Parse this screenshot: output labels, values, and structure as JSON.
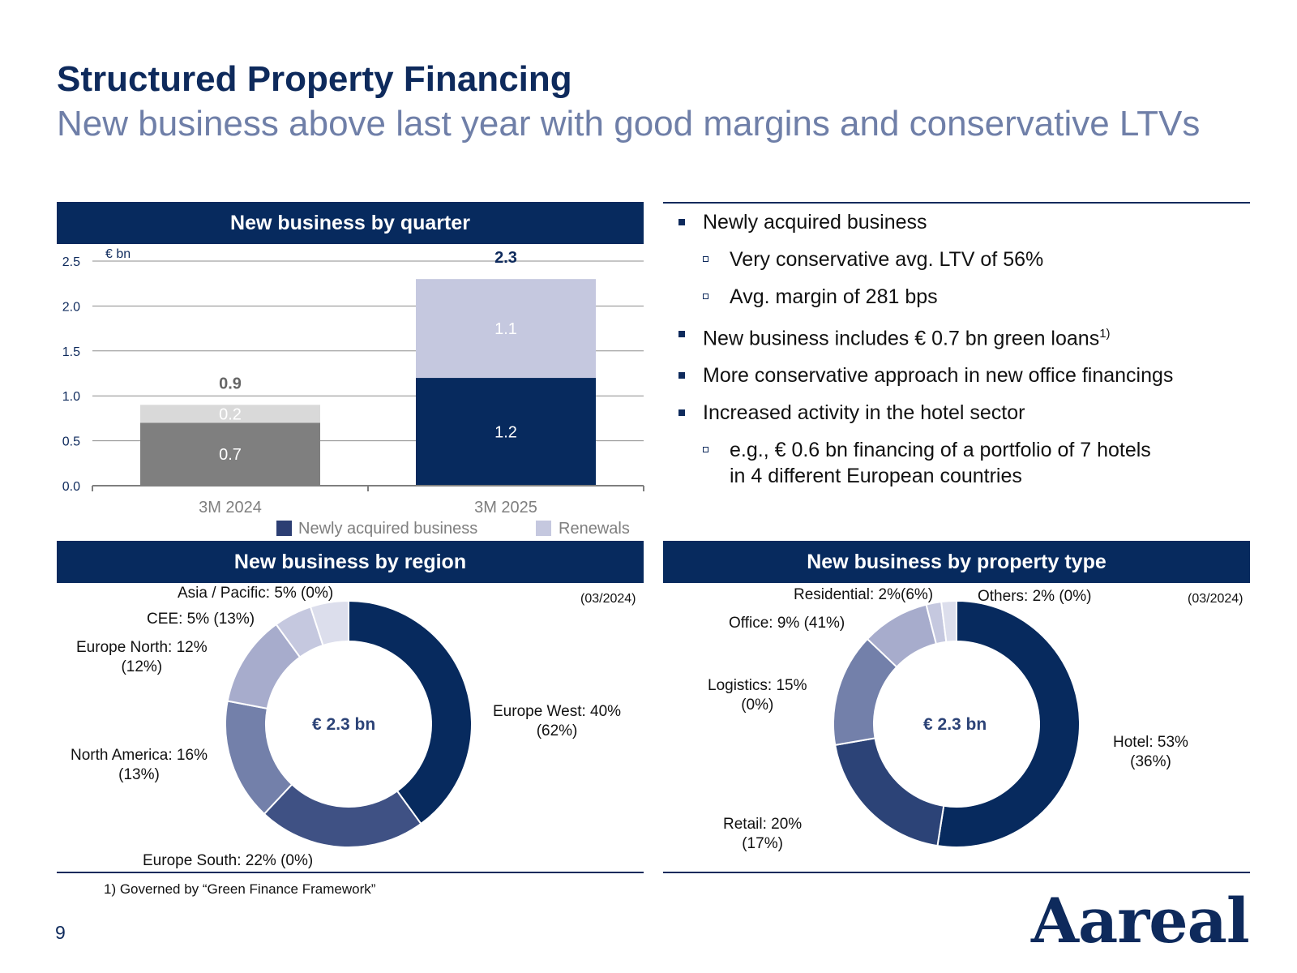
{
  "header": {
    "title": "Structured Property Financing",
    "subtitle": "New business above last year with good margins and conservative LTVs"
  },
  "panels": {
    "quarter_title": "New business by quarter",
    "region_title": "New business by region",
    "property_title": "New business by property type"
  },
  "bullets": {
    "b1": "Newly acquired business",
    "b1a": "Very conservative avg. LTV of 56%",
    "b1b": "Avg. margin of 281 bps",
    "b2": "New business includes € 0.7 bn green loans",
    "b2_sup": "1)",
    "b3": "More conservative approach in new office financings",
    "b4": "Increased activity in the hotel sector",
    "b4a_line1": "e.g., € 0.6 bn financing of a portfolio of 7 hotels",
    "b4a_line2": "in 4 different European countries"
  },
  "footnote": "1)   Governed by “Green Finance Framework”",
  "page_number": "9",
  "logo_text": "Aareal",
  "chart_data": [
    {
      "type": "bar",
      "stacked": true,
      "title": "New business by quarter",
      "unit_label": "€ bn",
      "categories": [
        "3M 2024",
        "3M 2025"
      ],
      "series": [
        {
          "name": "Newly acquired business",
          "values": [
            0.7,
            1.2
          ],
          "labels": [
            "0.7",
            "1.2"
          ],
          "colors": [
            "#7f7f7f",
            "#072a5e"
          ]
        },
        {
          "name": "Renewals",
          "values": [
            0.2,
            1.1
          ],
          "labels": [
            "0.2",
            "1.1"
          ],
          "colors": [
            "#d9d9d9",
            "#c5c8df"
          ]
        }
      ],
      "totals": [
        "0.9",
        "2.3"
      ],
      "total_colors": [
        "#666666",
        "#0e2a5c"
      ],
      "ylim": [
        0,
        2.5
      ],
      "yticks": [
        0.0,
        0.5,
        1.0,
        1.5,
        2.0,
        2.5
      ],
      "ytick_labels": [
        "0.0",
        "0.5",
        "1.0",
        "1.5",
        "2.0",
        "2.5"
      ],
      "grid": true,
      "legend": [
        {
          "name": "Newly acquired business",
          "color": "#2c3e73"
        },
        {
          "name": "Renewals",
          "color": "#c5c8df"
        }
      ],
      "legend_position": "bottom-right"
    },
    {
      "type": "pie",
      "donut": true,
      "title": "New business by region",
      "center_label": "€ 2.3 bn",
      "comparison_label": "(03/2024)",
      "slices": [
        {
          "name": "Europe West",
          "value": 40,
          "prior": "62%",
          "color": "#072a5e",
          "label_l1": "Europe West: 40%",
          "label_l2": "(62%)"
        },
        {
          "name": "Europe South",
          "value": 22,
          "prior": "0%",
          "color": "#3f5184",
          "label_l1": "Europe South: 22%  (0%)",
          "label_l2": ""
        },
        {
          "name": "North America",
          "value": 16,
          "prior": "13%",
          "color": "#7380aa",
          "label_l1": "North America: 16%",
          "label_l2": "(13%)"
        },
        {
          "name": "Europe North",
          "value": 12,
          "prior": "12%",
          "color": "#a7accc",
          "label_l1": "Europe North:  12%",
          "label_l2": "(12%)"
        },
        {
          "name": "CEE",
          "value": 5,
          "prior": "13%",
          "color": "#c5c8df",
          "label_l1": "CEE:  5% (13%)",
          "label_l2": ""
        },
        {
          "name": "Asia / Pacific",
          "value": 5,
          "prior": "0%",
          "color": "#dcdeec",
          "label_l1": "Asia / Pacific: 5% (0%)",
          "label_l2": ""
        }
      ]
    },
    {
      "type": "pie",
      "donut": true,
      "title": "New business by property type",
      "center_label": "€ 2.3 bn",
      "comparison_label": "(03/2024)",
      "slices": [
        {
          "name": "Hotel",
          "value": 53,
          "prior": "36%",
          "color": "#072a5e",
          "label_l1": "Hotel:  53%",
          "label_l2": "(36%)"
        },
        {
          "name": "Retail",
          "value": 20,
          "prior": "17%",
          "color": "#2c4377",
          "label_l1": "Retail:  20%",
          "label_l2": "(17%)"
        },
        {
          "name": "Logistics",
          "value": 15,
          "prior": "0%",
          "color": "#7380aa",
          "label_l1": "Logistics:  15%",
          "label_l2": "(0%)"
        },
        {
          "name": "Office",
          "value": 9,
          "prior": "41%",
          "color": "#a7accc",
          "label_l1": "Office:  9% (41%)",
          "label_l2": ""
        },
        {
          "name": "Residential",
          "value": 2,
          "prior": "6%",
          "color": "#c5c8df",
          "label_l1": "Residential:  2%(6%)",
          "label_l2": ""
        },
        {
          "name": "Others",
          "value": 2,
          "prior": "0%",
          "color": "#dcdeec",
          "label_l1": "Others:   2% (0%)",
          "label_l2": ""
        }
      ]
    }
  ]
}
